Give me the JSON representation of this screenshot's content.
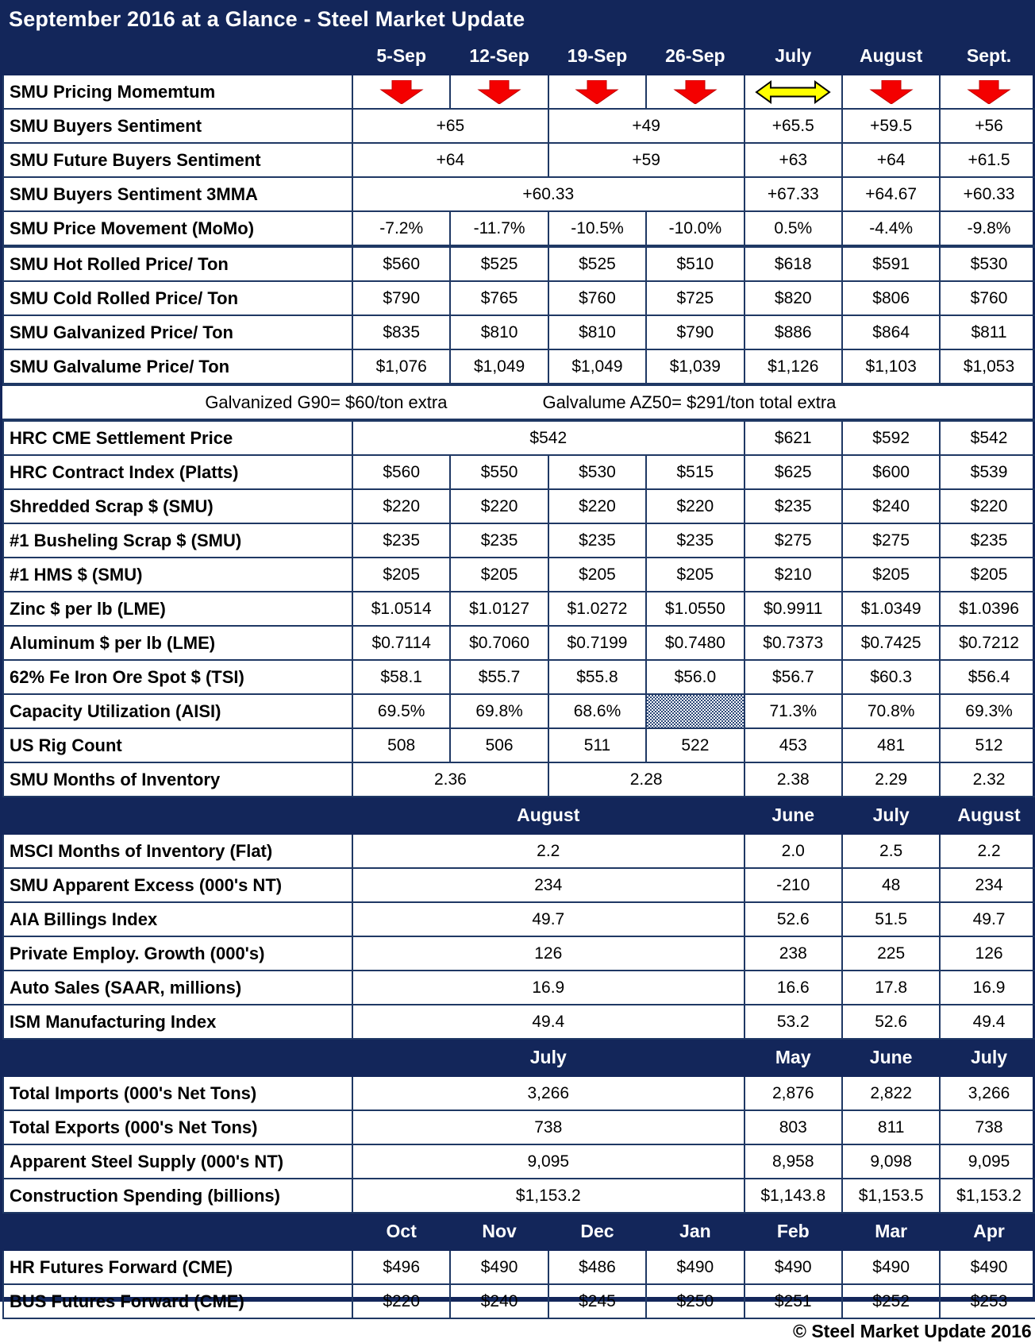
{
  "title": "September 2016 at a Glance - Steel Market Update",
  "footer": {
    "credit": "© Steel Market Update 2016"
  },
  "colors": {
    "navy": "#13265A",
    "border": "#1F3864",
    "arrow_red": "#F40000",
    "arrow_yellow": "#FFFF00",
    "text": "#000000",
    "background": "#FFFFFF"
  },
  "chart_data": {
    "type": "table",
    "sections": [
      {
        "columns": [
          {
            "t": "5-Sep"
          },
          {
            "t": "12-Sep"
          },
          {
            "t": "19-Sep"
          },
          {
            "t": "26-Sep"
          },
          {
            "t": "July"
          },
          {
            "t": "August"
          },
          {
            "t": "Sept."
          }
        ],
        "rows": [
          {
            "label": "SMU Pricing Momemtum",
            "cells": [
              {
                "i": "down"
              },
              {
                "i": "down"
              },
              {
                "i": "down"
              },
              {
                "i": "down"
              },
              {
                "i": "side"
              },
              {
                "i": "down"
              },
              {
                "i": "down"
              }
            ]
          },
          {
            "label": "SMU Buyers Sentiment",
            "cells": [
              {
                "t": "+65",
                "s": 2
              },
              {
                "t": "+49",
                "s": 2
              },
              {
                "t": "+65.5"
              },
              {
                "t": "+59.5"
              },
              {
                "t": "+56",
                "b": 1
              }
            ]
          },
          {
            "label": "SMU Future Buyers Sentiment",
            "cells": [
              {
                "t": "+64",
                "s": 2
              },
              {
                "t": "+59",
                "s": 2
              },
              {
                "t": "+63"
              },
              {
                "t": "+64"
              },
              {
                "t": "+61.5",
                "b": 1
              }
            ]
          },
          {
            "label": "SMU Buyers Sentiment 3MMA",
            "cells": [
              {
                "t": "+60.33",
                "s": 4
              },
              {
                "t": "+67.33"
              },
              {
                "t": "+64.67"
              },
              {
                "t": "+60.33",
                "b": 1
              }
            ]
          },
          {
            "label": "SMU Price Movement (MoMo)",
            "tb": 1,
            "cells": [
              {
                "t": "-7.2%"
              },
              {
                "t": "-11.7%"
              },
              {
                "t": "-10.5%"
              },
              {
                "t": "-10.0%"
              },
              {
                "t": "0.5%"
              },
              {
                "t": "-4.4%"
              },
              {
                "t": "-9.8%",
                "b": 1
              }
            ]
          },
          {
            "label": "SMU Hot Rolled Price/ Ton",
            "cells": [
              {
                "t": "$560"
              },
              {
                "t": "$525"
              },
              {
                "t": "$525"
              },
              {
                "t": "$510"
              },
              {
                "t": "$618"
              },
              {
                "t": "$591"
              },
              {
                "t": "$530",
                "b": 1
              }
            ]
          },
          {
            "label": "SMU Cold Rolled Price/ Ton",
            "cells": [
              {
                "t": "$790"
              },
              {
                "t": "$765"
              },
              {
                "t": "$760"
              },
              {
                "t": "$725"
              },
              {
                "t": "$820"
              },
              {
                "t": "$806"
              },
              {
                "t": "$760",
                "b": 1
              }
            ]
          },
          {
            "label": "SMU Galvanized Price/ Ton",
            "cells": [
              {
                "t": "$835"
              },
              {
                "t": "$810"
              },
              {
                "t": "$810"
              },
              {
                "t": "$790"
              },
              {
                "t": "$886"
              },
              {
                "t": "$864"
              },
              {
                "t": "$811",
                "b": 1
              }
            ]
          },
          {
            "label": "SMU Galvalume Price/ Ton",
            "cells": [
              {
                "t": "$1,076"
              },
              {
                "t": "$1,049"
              },
              {
                "t": "$1,049"
              },
              {
                "t": "$1,039"
              },
              {
                "t": "$1,126"
              },
              {
                "t": "$1,103"
              },
              {
                "t": "$1,053",
                "b": 1
              }
            ]
          },
          {
            "note": [
              "Galvanized G90= $60/ton extra",
              "Galvalume AZ50= $291/ton total extra"
            ],
            "tt": 1,
            "tb": 1
          },
          {
            "label": "HRC CME Settlement Price",
            "cells": [
              {
                "t": "$542",
                "s": 4
              },
              {
                "t": "$621"
              },
              {
                "t": "$592"
              },
              {
                "t": "$542",
                "b": 1
              }
            ]
          },
          {
            "label": "HRC Contract Index (Platts)",
            "cells": [
              {
                "t": "$560"
              },
              {
                "t": "$550"
              },
              {
                "t": "$530"
              },
              {
                "t": "$515"
              },
              {
                "t": "$625"
              },
              {
                "t": "$600"
              },
              {
                "t": "$539",
                "b": 1
              }
            ]
          },
          {
            "label": "Shredded Scrap $ (SMU)",
            "cells": [
              {
                "t": "$220"
              },
              {
                "t": "$220"
              },
              {
                "t": "$220"
              },
              {
                "t": "$220"
              },
              {
                "t": "$235"
              },
              {
                "t": "$240"
              },
              {
                "t": "$220",
                "b": 1
              }
            ]
          },
          {
            "label": "#1 Busheling Scrap $ (SMU)",
            "cells": [
              {
                "t": "$235"
              },
              {
                "t": "$235"
              },
              {
                "t": "$235"
              },
              {
                "t": "$235"
              },
              {
                "t": "$275"
              },
              {
                "t": "$275"
              },
              {
                "t": "$235",
                "b": 1
              }
            ]
          },
          {
            "label": "#1 HMS $ (SMU)",
            "cells": [
              {
                "t": "$205"
              },
              {
                "t": "$205"
              },
              {
                "t": "$205"
              },
              {
                "t": "$205"
              },
              {
                "t": "$210"
              },
              {
                "t": "$205"
              },
              {
                "t": "$205",
                "b": 1
              }
            ]
          },
          {
            "label": "Zinc $ per lb (LME)",
            "cells": [
              {
                "t": "$1.0514"
              },
              {
                "t": "$1.0127"
              },
              {
                "t": "$1.0272"
              },
              {
                "t": "$1.0550"
              },
              {
                "t": "$0.9911"
              },
              {
                "t": "$1.0349"
              },
              {
                "t": "$1.0396",
                "b": 1
              }
            ]
          },
          {
            "label": "Aluminum $ per lb (LME)",
            "cells": [
              {
                "t": "$0.7114"
              },
              {
                "t": "$0.7060"
              },
              {
                "t": "$0.7199"
              },
              {
                "t": "$0.7480"
              },
              {
                "t": "$0.7373"
              },
              {
                "t": "$0.7425"
              },
              {
                "t": "$0.7212",
                "b": 1
              }
            ]
          },
          {
            "label": "62% Fe Iron Ore Spot $ (TSI)",
            "cells": [
              {
                "t": "$58.1"
              },
              {
                "t": "$55.7"
              },
              {
                "t": "$55.8"
              },
              {
                "t": "$56.0"
              },
              {
                "t": "$56.7"
              },
              {
                "t": "$60.3"
              },
              {
                "t": "$56.4",
                "b": 1
              }
            ]
          },
          {
            "label": "Capacity Utilization (AISI)",
            "cells": [
              {
                "t": "69.5%"
              },
              {
                "t": "69.8%"
              },
              {
                "t": "68.6%"
              },
              {
                "h": 1
              },
              {
                "t": "71.3%"
              },
              {
                "t": "70.8%"
              },
              {
                "t": "69.3%",
                "b": 1
              }
            ]
          },
          {
            "label": "US Rig Count",
            "cells": [
              {
                "t": "508"
              },
              {
                "t": "506"
              },
              {
                "t": "511"
              },
              {
                "t": "522"
              },
              {
                "t": "453"
              },
              {
                "t": "481"
              },
              {
                "t": "512",
                "b": 1
              }
            ]
          },
          {
            "label": "SMU Months of Inventory",
            "cells": [
              {
                "t": "2.36",
                "s": 2
              },
              {
                "t": "2.28",
                "s": 2
              },
              {
                "t": "2.38"
              },
              {
                "t": "2.29"
              },
              {
                "t": "2.32",
                "b": 1
              }
            ]
          }
        ]
      },
      {
        "columns": [
          {
            "t": "August",
            "s": 4
          },
          {
            "t": "June"
          },
          {
            "t": "July"
          },
          {
            "t": "August"
          }
        ],
        "rows": [
          {
            "label": "MSCI Months of Inventory (Flat)",
            "cells": [
              {
                "t": "2.2",
                "s": 4
              },
              {
                "t": "2.0"
              },
              {
                "t": "2.5"
              },
              {
                "t": "2.2",
                "b": 1
              }
            ]
          },
          {
            "label": "SMU Apparent Excess (000's NT)",
            "cells": [
              {
                "t": "234",
                "s": 4
              },
              {
                "t": "-210"
              },
              {
                "t": "48"
              },
              {
                "t": "234",
                "b": 1
              }
            ]
          },
          {
            "label": "AIA Billings Index",
            "cells": [
              {
                "t": "49.7",
                "s": 4
              },
              {
                "t": "52.6"
              },
              {
                "t": "51.5"
              },
              {
                "t": "49.7",
                "b": 1
              }
            ]
          },
          {
            "label": "Private Employ. Growth (000's)",
            "cells": [
              {
                "t": "126",
                "s": 4
              },
              {
                "t": "238"
              },
              {
                "t": "225"
              },
              {
                "t": "126",
                "b": 1
              }
            ]
          },
          {
            "label": "Auto Sales (SAAR, millions)",
            "cells": [
              {
                "t": "16.9",
                "s": 4
              },
              {
                "t": "16.6"
              },
              {
                "t": "17.8"
              },
              {
                "t": "16.9",
                "b": 1
              }
            ]
          },
          {
            "label": "ISM Manufacturing Index",
            "cells": [
              {
                "t": "49.4",
                "s": 4
              },
              {
                "t": "53.2"
              },
              {
                "t": "52.6"
              },
              {
                "t": "49.4",
                "b": 1
              }
            ]
          }
        ]
      },
      {
        "columns": [
          {
            "t": "July",
            "s": 4
          },
          {
            "t": "May"
          },
          {
            "t": "June"
          },
          {
            "t": "July"
          }
        ],
        "rows": [
          {
            "label": "Total Imports (000's Net Tons)",
            "cells": [
              {
                "t": "3,266",
                "s": 4
              },
              {
                "t": "2,876"
              },
              {
                "t": "2,822"
              },
              {
                "t": "3,266",
                "b": 1
              }
            ]
          },
          {
            "label": "Total Exports (000's Net Tons)",
            "cells": [
              {
                "t": "738",
                "s": 4
              },
              {
                "t": "803"
              },
              {
                "t": "811"
              },
              {
                "t": "738",
                "b": 1
              }
            ]
          },
          {
            "label": "Apparent Steel Supply (000's NT)",
            "cells": [
              {
                "t": "9,095",
                "s": 4
              },
              {
                "t": "8,958"
              },
              {
                "t": "9,098"
              },
              {
                "t": "9,095",
                "b": 1
              }
            ]
          },
          {
            "label": "Construction Spending (billions)",
            "cells": [
              {
                "t": "$1,153.2",
                "s": 4
              },
              {
                "t": "$1,143.8"
              },
              {
                "t": "$1,153.5"
              },
              {
                "t": "$1,153.2",
                "b": 1
              }
            ]
          }
        ]
      },
      {
        "columns": [
          {
            "t": "Oct"
          },
          {
            "t": "Nov"
          },
          {
            "t": "Dec"
          },
          {
            "t": "Jan"
          },
          {
            "t": "Feb"
          },
          {
            "t": "Mar"
          },
          {
            "t": "Apr"
          }
        ],
        "rows": [
          {
            "label": "HR Futures Forward (CME)",
            "cells": [
              {
                "t": "$496"
              },
              {
                "t": "$490"
              },
              {
                "t": "$486"
              },
              {
                "t": "$490"
              },
              {
                "t": "$490"
              },
              {
                "t": "$490"
              },
              {
                "t": "$490"
              }
            ]
          },
          {
            "label": "BUS Futures Forward (CME)",
            "cells": [
              {
                "t": "$220"
              },
              {
                "t": "$240"
              },
              {
                "t": "$245"
              },
              {
                "t": "$250"
              },
              {
                "t": "$251"
              },
              {
                "t": "$252"
              },
              {
                "t": "$253"
              }
            ]
          }
        ]
      }
    ]
  }
}
